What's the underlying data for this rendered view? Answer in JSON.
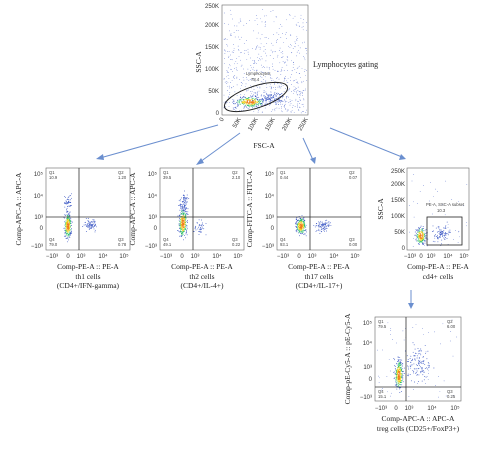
{
  "lymphocytes": {
    "gate_label": "Lymphocytes gating",
    "gate_name": "Lymphocytes",
    "gate_value": "78.4",
    "x_label": "FSC-A",
    "y_label": "SSC-A",
    "x_ticks": [
      "0",
      "50K",
      "100K",
      "150K",
      "200K",
      "250K"
    ],
    "y_ticks": [
      "0",
      "50K",
      "100K",
      "150K",
      "200K",
      "250K"
    ]
  },
  "log_ticks": {
    "x": [
      "−10³",
      "0",
      "10³",
      "10⁴",
      "10⁵"
    ],
    "y": [
      "−10³",
      "0",
      "10³",
      "10⁴",
      "10⁵"
    ]
  },
  "panels": [
    {
      "y_label": "Comp-APC-A :: APC-A",
      "x_label": "Comp-PE-A :: PE-A",
      "caption": [
        "th1 cells",
        "(CD4+/IFN-gamma)"
      ],
      "quadrants": {
        "Q1": "10.9",
        "Q2": "1.20",
        "Q3": "0.78",
        "Q4": "79.0"
      }
    },
    {
      "y_label": "Comp-APC-A :: APC-A",
      "x_label": "Comp-PE-A :: PE-A",
      "caption": [
        "th2 cells",
        "(CD4+/IL-4+)"
      ],
      "quadrants": {
        "Q1": "39.5",
        "Q2": "2.10",
        "Q3": "0.22",
        "Q4": "49.1"
      }
    },
    {
      "y_label": "Comp-FITC-A :: FITC-A",
      "x_label": "Comp-PE-A :: PE-A",
      "caption": [
        "th17 cells",
        "(CD4+/IL-17+)"
      ],
      "quadrants": {
        "Q1": "0.44",
        "Q2": "0.07",
        "Q3": "0.00",
        "Q4": "93.1"
      }
    }
  ],
  "cd4_panel": {
    "y_label": "SSC-A",
    "x_label": "Comp-PE-A :: PE-A",
    "caption": "cd4+ cells",
    "gate_name": "PE-A, SSC-A subset",
    "gate_value": "10.3",
    "y_ticks": [
      "0",
      "50K",
      "100K",
      "150K",
      "200K",
      "250K"
    ]
  },
  "treg_panel": {
    "y_label": "Comp-pE-Cy5-A :: pE-Cy5-A",
    "x_label": "Comp-APC-A :: APC-A",
    "caption": "treg cells (CD25+/FoxP3+)",
    "quadrants": {
      "Q1": "79.5",
      "Q2": "6.00",
      "Q3": "0.25",
      "Q4": "15.1"
    }
  },
  "colors": {
    "arrow": "#6b8fcf",
    "dots": "#3b57c4",
    "hot1": "#2fbf6a",
    "hot2": "#f0d21e",
    "hot3": "#f07a1a",
    "gate": "#222222"
  }
}
